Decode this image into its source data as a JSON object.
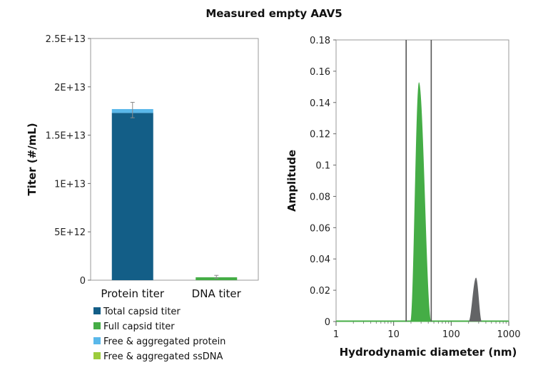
{
  "title": "Measured empty AAV5",
  "chart_data": [
    {
      "type": "bar",
      "ylabel": "Titer (#/mL)",
      "ylim": [
        0,
        25000000000000.0
      ],
      "yticks": [
        {
          "value": 0,
          "label": "0"
        },
        {
          "value": 5000000000000.0,
          "label": "5E+12"
        },
        {
          "value": 10000000000000.0,
          "label": "1E+13"
        },
        {
          "value": 15000000000000.0,
          "label": "1.5E+13"
        },
        {
          "value": 20000000000000.0,
          "label": "2E+13"
        },
        {
          "value": 25000000000000.0,
          "label": "2.5E+13"
        }
      ],
      "categories": [
        "Protein titer",
        "DNA titer"
      ],
      "series": [
        {
          "name": "Total capsid titer",
          "color": "#135e87",
          "values": [
            17300000000000.0,
            0
          ]
        },
        {
          "name": "Full capsid titer",
          "color": "#45ad46",
          "values": [
            0,
            300000000000.0
          ]
        },
        {
          "name": "Free & aggregated protein",
          "color": "#5ab8ea",
          "values": [
            400000000000.0,
            0
          ]
        },
        {
          "name": "Free & aggregated ssDNA",
          "color": "#9ccc3c",
          "values": [
            0,
            0
          ]
        }
      ],
      "error_bars": [
        {
          "category": "Protein titer",
          "center": 17600000000000.0,
          "low": 16800000000000.0,
          "high": 18400000000000.0
        },
        {
          "category": "DNA titer",
          "center": 350000000000.0,
          "low": 200000000000.0,
          "high": 500000000000.0
        }
      ],
      "legend": "bottom"
    },
    {
      "type": "area",
      "xlabel": "Hydrodynamic diameter (nm)",
      "ylabel": "Amplitude",
      "xscale": "log",
      "xlim": [
        1,
        1000
      ],
      "ylim": [
        0,
        0.18
      ],
      "xticks": [
        {
          "value": 1,
          "label": "1"
        },
        {
          "value": 10,
          "label": "10"
        },
        {
          "value": 100,
          "label": "100"
        },
        {
          "value": 1000,
          "label": "1000"
        }
      ],
      "yticks": [
        {
          "value": 0,
          "label": "0"
        },
        {
          "value": 0.02,
          "label": "0.02"
        },
        {
          "value": 0.04,
          "label": "0.04"
        },
        {
          "value": 0.06,
          "label": "0.06"
        },
        {
          "value": 0.08,
          "label": "0.08"
        },
        {
          "value": 0.1,
          "label": "0.1"
        },
        {
          "value": 0.12,
          "label": "0.12"
        },
        {
          "value": 0.14,
          "label": "0.14"
        },
        {
          "value": 0.16,
          "label": "0.16"
        },
        {
          "value": 0.18,
          "label": "0.18"
        }
      ],
      "peaks": [
        {
          "color": "#45ad46",
          "center": 27.5,
          "start": 19.5,
          "end": 45,
          "amplitude": 0.153
        },
        {
          "color": "#636466",
          "center": 270,
          "start": 200,
          "end": 340,
          "amplitude": 0.028
        }
      ],
      "baseline_color": "#45ad46",
      "vertical_lines": [
        16.5,
        45
      ]
    }
  ]
}
